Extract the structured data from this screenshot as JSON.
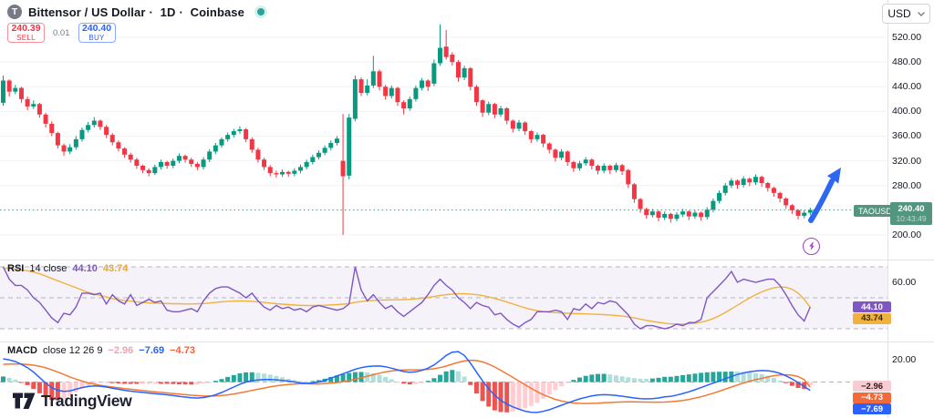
{
  "header": {
    "symbol_icon": "T",
    "symbol": "Bittensor / US Dollar",
    "separator": "·",
    "interval": "1D",
    "exchange": "Coinbase"
  },
  "trade_buttons": {
    "sell_price": "240.39",
    "sell_label": "SELL",
    "spread": "0.01",
    "buy_price": "240.40",
    "buy_label": "BUY"
  },
  "currency_button": {
    "label": "USD"
  },
  "price_scale": {
    "tick_labels": [
      "520.00",
      "480.00",
      "440.00",
      "400.00",
      "360.00",
      "320.00",
      "280.00",
      "200.00"
    ],
    "tick_values": [
      520,
      480,
      440,
      400,
      360,
      320,
      280,
      200
    ],
    "current": {
      "symbol": "TAOUSD",
      "price": "240.40",
      "time": "10:43:49"
    }
  },
  "rsi_panel": {
    "name": "RSI",
    "params": "14 close",
    "value": "44.10",
    "ma_value": "43.74",
    "axis_label": "60.00",
    "axis_label_value": 60
  },
  "macd_panel": {
    "name": "MACD",
    "params": "close 12 26 9",
    "histogram_value": "−2.96",
    "macd_value": "−7.69",
    "signal_value": "−4.73",
    "axis_label": "20.00",
    "axis_label_value": 20
  },
  "watermark": {
    "label": "TradingView"
  },
  "colors": {
    "up": "#089981",
    "down": "#f23645",
    "grid": "#f2f3f7",
    "separator": "#e0e3eb",
    "dashed_level": "#b2b5be",
    "price_line": "#53957f",
    "rsi": "#7e57c2",
    "rsi_ma": "#f0b23f",
    "rsi_band": "rgba(126,87,194,0.08)",
    "macd": "#2962ff",
    "macd_signal": "#f27935",
    "hist_pos": "#26a69a",
    "hist_pos_weak": "#b2dfdb",
    "hist_neg": "#ef5350",
    "hist_neg_weak": "#ffcdd2",
    "arrow": "#2f68f0",
    "flash": "#a13fc4"
  },
  "chart_data": {
    "type": "candlestick",
    "symbol": "TAOUSD",
    "interval": "1D",
    "exchange": "Coinbase",
    "current_price": 240.4,
    "price_axis": {
      "min": 190,
      "max": 545,
      "ticks": [
        520,
        480,
        440,
        400,
        360,
        320,
        280,
        240,
        200
      ]
    },
    "candles_ohlc": [
      [
        414,
        458,
        409,
        450
      ],
      [
        450,
        452,
        424,
        432
      ],
      [
        432,
        443,
        428,
        438
      ],
      [
        438,
        440,
        414,
        420
      ],
      [
        420,
        424,
        402,
        408
      ],
      [
        408,
        418,
        404,
        412
      ],
      [
        412,
        414,
        390,
        395
      ],
      [
        395,
        398,
        374,
        380
      ],
      [
        380,
        384,
        360,
        365
      ],
      [
        365,
        367,
        340,
        345
      ],
      [
        345,
        348,
        328,
        335
      ],
      [
        335,
        347,
        331,
        342
      ],
      [
        342,
        360,
        338,
        355
      ],
      [
        355,
        374,
        351,
        370
      ],
      [
        370,
        383,
        366,
        378
      ],
      [
        378,
        391,
        374,
        385
      ],
      [
        385,
        387,
        370,
        375
      ],
      [
        375,
        378,
        357,
        362
      ],
      [
        362,
        365,
        345,
        350
      ],
      [
        350,
        353,
        335,
        340
      ],
      [
        340,
        342,
        325,
        330
      ],
      [
        330,
        333,
        317,
        322
      ],
      [
        322,
        325,
        307,
        312
      ],
      [
        312,
        314,
        300,
        305
      ],
      [
        305,
        308,
        295,
        300
      ],
      [
        300,
        314,
        297,
        310
      ],
      [
        310,
        322,
        306,
        318
      ],
      [
        318,
        320,
        307,
        312
      ],
      [
        312,
        324,
        308,
        320
      ],
      [
        320,
        332,
        316,
        328
      ],
      [
        328,
        330,
        317,
        322
      ],
      [
        322,
        325,
        310,
        315
      ],
      [
        315,
        318,
        305,
        310
      ],
      [
        310,
        326,
        306,
        322
      ],
      [
        322,
        339,
        318,
        335
      ],
      [
        335,
        349,
        331,
        345
      ],
      [
        345,
        358,
        341,
        355
      ],
      [
        355,
        366,
        351,
        362
      ],
      [
        362,
        372,
        358,
        368
      ],
      [
        368,
        376,
        364,
        371
      ],
      [
        371,
        373,
        350,
        355
      ],
      [
        355,
        358,
        333,
        338
      ],
      [
        338,
        341,
        317,
        322
      ],
      [
        322,
        325,
        305,
        310
      ],
      [
        310,
        313,
        295,
        300
      ],
      [
        300,
        304,
        293,
        298
      ],
      [
        298,
        306,
        294,
        302
      ],
      [
        302,
        304,
        294,
        299
      ],
      [
        299,
        308,
        295,
        304
      ],
      [
        304,
        314,
        300,
        310
      ],
      [
        310,
        322,
        306,
        318
      ],
      [
        318,
        330,
        314,
        326
      ],
      [
        326,
        337,
        322,
        333
      ],
      [
        333,
        345,
        329,
        341
      ],
      [
        341,
        353,
        337,
        349
      ],
      [
        349,
        360,
        345,
        356
      ],
      [
        320,
        396,
        200,
        295
      ],
      [
        296,
        396,
        290,
        390
      ],
      [
        388,
        458,
        384,
        452
      ],
      [
        452,
        455,
        425,
        430
      ],
      [
        430,
        452,
        426,
        442
      ],
      [
        442,
        490,
        438,
        465
      ],
      [
        465,
        468,
        434,
        440
      ],
      [
        440,
        443,
        419,
        425
      ],
      [
        425,
        442,
        421,
        438
      ],
      [
        438,
        440,
        409,
        415
      ],
      [
        415,
        418,
        395,
        405
      ],
      [
        405,
        424,
        401,
        420
      ],
      [
        420,
        442,
        416,
        438
      ],
      [
        438,
        454,
        434,
        450
      ],
      [
        450,
        452,
        433,
        440
      ],
      [
        445,
        484,
        441,
        478
      ],
      [
        478,
        541,
        474,
        503
      ],
      [
        505,
        532,
        484,
        488
      ],
      [
        492,
        496,
        474,
        480
      ],
      [
        480,
        483,
        448,
        455
      ],
      [
        455,
        474,
        451,
        470
      ],
      [
        470,
        472,
        434,
        440
      ],
      [
        440,
        443,
        409,
        415
      ],
      [
        418,
        420,
        391,
        398
      ],
      [
        398,
        416,
        394,
        412
      ],
      [
        412,
        414,
        389,
        395
      ],
      [
        395,
        409,
        391,
        405
      ],
      [
        405,
        407,
        379,
        385
      ],
      [
        385,
        387,
        366,
        372
      ],
      [
        372,
        386,
        368,
        382
      ],
      [
        382,
        384,
        362,
        368
      ],
      [
        368,
        370,
        349,
        355
      ],
      [
        355,
        366,
        351,
        362
      ],
      [
        362,
        364,
        342,
        348
      ],
      [
        348,
        350,
        332,
        338
      ],
      [
        338,
        340,
        319,
        325
      ],
      [
        325,
        339,
        321,
        335
      ],
      [
        335,
        337,
        312,
        318
      ],
      [
        318,
        320,
        302,
        308
      ],
      [
        308,
        320,
        304,
        316
      ],
      [
        316,
        326,
        312,
        322
      ],
      [
        322,
        324,
        306,
        312
      ],
      [
        312,
        314,
        298,
        304
      ],
      [
        304,
        316,
        300,
        312
      ],
      [
        312,
        314,
        299,
        305
      ],
      [
        305,
        317,
        301,
        313
      ],
      [
        313,
        315,
        297,
        303
      ],
      [
        305,
        307,
        276,
        282
      ],
      [
        282,
        284,
        252,
        258
      ],
      [
        258,
        260,
        236,
        242
      ],
      [
        242,
        244,
        226,
        232
      ],
      [
        232,
        242,
        228,
        238
      ],
      [
        238,
        240,
        222,
        228
      ],
      [
        228,
        238,
        224,
        234
      ],
      [
        234,
        236,
        220,
        226
      ],
      [
        226,
        237,
        222,
        233
      ],
      [
        233,
        242,
        229,
        238
      ],
      [
        238,
        240,
        224,
        230
      ],
      [
        230,
        240,
        226,
        236
      ],
      [
        236,
        238,
        223,
        229
      ],
      [
        229,
        245,
        225,
        241
      ],
      [
        241,
        259,
        237,
        255
      ],
      [
        255,
        272,
        251,
        268
      ],
      [
        268,
        284,
        264,
        280
      ],
      [
        280,
        292,
        276,
        288
      ],
      [
        288,
        290,
        275,
        281
      ],
      [
        281,
        295,
        277,
        291
      ],
      [
        291,
        293,
        279,
        285
      ],
      [
        285,
        298,
        281,
        294
      ],
      [
        294,
        296,
        278,
        284
      ],
      [
        284,
        286,
        270,
        276
      ],
      [
        276,
        278,
        262,
        268
      ],
      [
        268,
        270,
        253,
        259
      ],
      [
        259,
        261,
        242,
        248
      ],
      [
        248,
        250,
        234,
        240
      ],
      [
        240,
        242,
        225,
        231
      ],
      [
        231,
        240,
        227,
        236
      ],
      [
        236,
        244,
        232,
        240.4
      ]
    ],
    "indicators": {
      "rsi": {
        "length": 14,
        "source": "close",
        "levels": [
          70,
          50,
          30
        ],
        "range": [
          0,
          100
        ],
        "last": 44.1,
        "ma_last": 43.74,
        "rsi_line": [
          70,
          62,
          58,
          58,
          55,
          50,
          47,
          42,
          37,
          34,
          40,
          39,
          44,
          53,
          53,
          52,
          53,
          46,
          52,
          48,
          46,
          52,
          45,
          47,
          49,
          47,
          48,
          42,
          41,
          41,
          42,
          43,
          41,
          48,
          53,
          56,
          57,
          57,
          55,
          53,
          50,
          53,
          48,
          44,
          42,
          45,
          43,
          44,
          42,
          43,
          41,
          44,
          45,
          44,
          43,
          42,
          43,
          46,
          70,
          55,
          48,
          52,
          47,
          43,
          45,
          41,
          38,
          41,
          44,
          47,
          52,
          58,
          62,
          58,
          55,
          50,
          47,
          43,
          47,
          45,
          44,
          39,
          40,
          36,
          33,
          31,
          34,
          36,
          41,
          41,
          41,
          42,
          41,
          36,
          43,
          42,
          46,
          43,
          47,
          46,
          48,
          47,
          43,
          39,
          33,
          30,
          32,
          32,
          31,
          30,
          31,
          33,
          32,
          34,
          34,
          36,
          50,
          54,
          58,
          62,
          67,
          60,
          62,
          61,
          60,
          61,
          62,
          62,
          58,
          52,
          45,
          39,
          35,
          44.1
        ],
        "ma_line": [
          69,
          69,
          68.5,
          68,
          67.5,
          66.5,
          65.5,
          64,
          62.5,
          61,
          59.5,
          58,
          56.5,
          55,
          53.5,
          52.5,
          51.5,
          50.5,
          49.5,
          48.8,
          48.2,
          47.8,
          47.4,
          47,
          46.7,
          46.5,
          46.4,
          46.3,
          46.2,
          46.1,
          46,
          46,
          46.1,
          46.3,
          46.6,
          47,
          47.4,
          47.7,
          47.9,
          48,
          47.9,
          47.7,
          47.4,
          47,
          46.6,
          46.2,
          45.9,
          45.6,
          45.3,
          45.1,
          45,
          45,
          45.1,
          45.2,
          45.4,
          45.6,
          45.9,
          46.3,
          47,
          47.6,
          48,
          48.3,
          48.5,
          48.6,
          48.7,
          48.7,
          48.8,
          49,
          49.3,
          49.7,
          50.2,
          50.8,
          51.5,
          52,
          52.4,
          52.6,
          52.6,
          52.4,
          52,
          51.4,
          50.6,
          49.6,
          48.5,
          47.3,
          46,
          44.7,
          43.5,
          42.5,
          41.7,
          41.1,
          40.7,
          40.4,
          40.2,
          40,
          39.8,
          39.7,
          39.6,
          39.5,
          39.3,
          39.1,
          38.9,
          38.6,
          38.2,
          37.7,
          37,
          36.2,
          35.4,
          34.7,
          34.1,
          33.6,
          33.2,
          33,
          33,
          33.2,
          33.6,
          34.2,
          35.2,
          36.6,
          38.4,
          40.5,
          42.8,
          45.2,
          47.6,
          49.9,
          52,
          53.8,
          55.3,
          56.4,
          57,
          56.8,
          55.5,
          53,
          49,
          43.74
        ]
      },
      "macd": {
        "fast": 12,
        "slow": 26,
        "signal": 9,
        "last_histogram": -2.96,
        "last_macd": -7.69,
        "last_signal": -4.73,
        "macd_line": [
          21,
          20,
          18.5,
          16,
          13,
          9,
          4,
          -1,
          -5,
          -7.5,
          -8.5,
          -8,
          -6.5,
          -5,
          -4,
          -3.5,
          -3.8,
          -4.5,
          -5.5,
          -6.5,
          -7.5,
          -8.2,
          -8.8,
          -9.4,
          -10,
          -10.5,
          -11,
          -11.5,
          -12.2,
          -13,
          -13.6,
          -14.2,
          -14.5,
          -14,
          -13,
          -11.5,
          -9.5,
          -7,
          -4.5,
          -2,
          0,
          1.2,
          1.8,
          2.2,
          2.3,
          2,
          1.5,
          0.8,
          0,
          -0.8,
          -1.2,
          -0.8,
          0,
          1.5,
          3.5,
          5.5,
          7.5,
          9.5,
          11.5,
          13,
          14,
          14.4,
          14.5,
          13.8,
          12.5,
          11,
          9.5,
          8.8,
          9.2,
          10.5,
          12.5,
          15.5,
          19.5,
          24,
          27,
          27.5,
          24,
          17,
          9,
          1,
          -6,
          -12,
          -16.5,
          -20,
          -22.5,
          -24.5,
          -26.3,
          -27.3,
          -27.5,
          -26.5,
          -25,
          -23,
          -21,
          -19,
          -17,
          -15.2,
          -13.8,
          -12.6,
          -11.8,
          -11.4,
          -11.6,
          -12.2,
          -12.8,
          -13.6,
          -14.4,
          -15,
          -15.2,
          -15,
          -14.4,
          -13.4,
          -13,
          -11.8,
          -10.4,
          -8.8,
          -7,
          -5,
          -3,
          -1,
          1,
          3,
          5,
          6.8,
          8.2,
          9.2,
          10,
          10.4,
          10.2,
          9.4,
          7.8,
          5.6,
          2.8,
          -0.5,
          -4,
          -7.69
        ],
        "signal_line": [
          16,
          16.2,
          16.3,
          16.2,
          15.8,
          15.2,
          14.2,
          12.8,
          11,
          9,
          6.8,
          4.6,
          2.6,
          0.8,
          -0.7,
          -2,
          -3,
          -3.8,
          -4.5,
          -5.2,
          -5.9,
          -6.5,
          -7.1,
          -7.7,
          -8.3,
          -8.9,
          -9.4,
          -9.9,
          -10.4,
          -10.9,
          -11.4,
          -11.9,
          -12.3,
          -12.6,
          -12.7,
          -12.6,
          -12.2,
          -11.6,
          -10.8,
          -9.8,
          -8.7,
          -7.6,
          -6.5,
          -5.4,
          -4.4,
          -3.5,
          -2.8,
          -2.2,
          -1.8,
          -1.6,
          -1.6,
          -1.7,
          -1.7,
          -1.5,
          -1.1,
          -0.5,
          0.3,
          1.3,
          2.5,
          3.9,
          5.3,
          6.7,
          8,
          9.1,
          10,
          10.6,
          10.9,
          11,
          11,
          11.1,
          11.4,
          12,
          13,
          14.4,
          16.1,
          17.8,
          19.1,
          19.7,
          19.4,
          18.2,
          16.2,
          13.6,
          10.6,
          7.4,
          4.1,
          0.8,
          -2.5,
          -5.7,
          -8.7,
          -11.4,
          -13.7,
          -15.6,
          -17.1,
          -18.2,
          -18.9,
          -19.3,
          -19.4,
          -19.3,
          -19.1,
          -18.8,
          -18.5,
          -18.2,
          -18,
          -17.9,
          -17.9,
          -18,
          -18.1,
          -18.2,
          -18.2,
          -18.1,
          -17.8,
          -17.3,
          -16.6,
          -15.7,
          -14.6,
          -13.3,
          -11.8,
          -10.1,
          -8.3,
          -6.4,
          -4.5,
          -2.6,
          -0.9,
          0.7,
          2.1,
          3.3,
          4.6,
          5.7,
          6.4,
          6.6,
          6.2,
          4.9,
          2.2,
          -4.73
        ]
      }
    }
  }
}
